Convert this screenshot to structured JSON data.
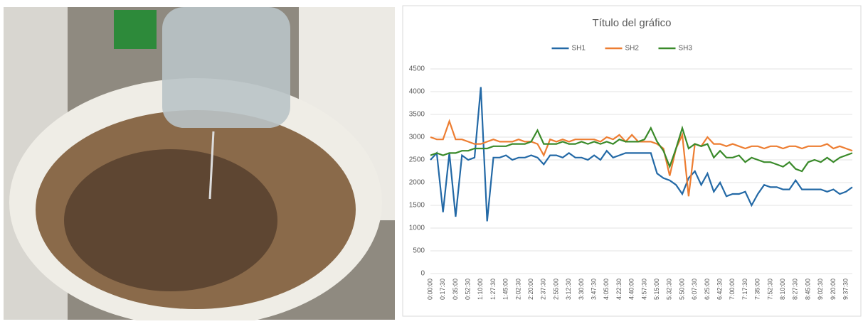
{
  "chart_data": {
    "type": "line",
    "title": "Título del gráfico",
    "categories": [
      "0:00:00",
      null,
      "0:17:30",
      null,
      "0:35:00",
      null,
      "0:52:30",
      null,
      "1:10:00",
      null,
      "1:27:30",
      null,
      "1:45:00",
      null,
      "2:02:30",
      null,
      "2:20:00",
      null,
      "2:37:30",
      null,
      "2:55:00",
      null,
      "3:12:30",
      null,
      "3:30:00",
      null,
      "3:47:30",
      null,
      "4:05:00",
      null,
      "4:22:30",
      null,
      "4:40:00",
      null,
      "4:57:30",
      null,
      "5:15:00",
      null,
      "5:32:30",
      null,
      "5:50:00",
      null,
      "6:07:30",
      null,
      "6:25:00",
      null,
      "6:42:30",
      null,
      "7:00:00",
      null,
      "7:17:30",
      null,
      "7:35:00",
      null,
      "7:52:30",
      null,
      "8:10:00",
      null,
      "8:27:30",
      null,
      "8:45:00",
      null,
      "9:02:30",
      null,
      "9:20:00",
      null,
      "9:37:30",
      null
    ],
    "series": [
      {
        "name": "SH1",
        "color": "#2369a6",
        "values": [
          2500,
          2650,
          1350,
          2650,
          1250,
          2600,
          2500,
          2550,
          4100,
          1150,
          2550,
          2550,
          2600,
          2500,
          2550,
          2550,
          2600,
          2550,
          2400,
          2600,
          2600,
          2550,
          2650,
          2550,
          2550,
          2500,
          2600,
          2500,
          2700,
          2550,
          2600,
          2650,
          2650,
          2650,
          2650,
          2650,
          2200,
          2100,
          2050,
          1950,
          1750,
          2100,
          2250,
          1950,
          2200,
          1800,
          2000,
          1700,
          1750,
          1750,
          1800,
          1500,
          1750,
          1950,
          1900,
          1900,
          1850,
          1850,
          2050,
          1850,
          1850,
          1850,
          1850,
          1800,
          1850,
          1750,
          1800,
          1900
        ]
      },
      {
        "name": "SH2",
        "color": "#ed7d31",
        "values": [
          3000,
          2950,
          2950,
          3350,
          2950,
          2950,
          2900,
          2850,
          2850,
          2900,
          2950,
          2900,
          2900,
          2900,
          2950,
          2900,
          2900,
          2850,
          2600,
          2950,
          2900,
          2950,
          2900,
          2950,
          2950,
          2950,
          2950,
          2900,
          3000,
          2950,
          3050,
          2900,
          3050,
          2900,
          2900,
          2900,
          2850,
          2750,
          2150,
          2750,
          3050,
          1700,
          2850,
          2800,
          3000,
          2850,
          2850,
          2800,
          2850,
          2800,
          2750,
          2800,
          2800,
          2750,
          2800,
          2800,
          2750,
          2800,
          2800,
          2750,
          2800,
          2800,
          2800,
          2850,
          2750,
          2800,
          2750,
          2700
        ]
      },
      {
        "name": "SH3",
        "color": "#3a8a2a",
        "values": [
          2600,
          2650,
          2600,
          2650,
          2650,
          2700,
          2700,
          2750,
          2750,
          2750,
          2800,
          2800,
          2800,
          2850,
          2850,
          2850,
          2900,
          3150,
          2850,
          2850,
          2850,
          2900,
          2850,
          2850,
          2900,
          2850,
          2900,
          2850,
          2900,
          2850,
          2950,
          2900,
          2900,
          2900,
          2950,
          3200,
          2900,
          2700,
          2350,
          2750,
          3200,
          2750,
          2850,
          2800,
          2850,
          2550,
          2700,
          2550,
          2550,
          2600,
          2450,
          2550,
          2500,
          2450,
          2450,
          2400,
          2350,
          2450,
          2300,
          2250,
          2450,
          2500,
          2450,
          2550,
          2450,
          2550,
          2600,
          2650
        ]
      }
    ],
    "ylim": [
      0,
      4500
    ],
    "yticks": [
      0,
      500,
      1000,
      1500,
      2000,
      2500,
      3000,
      3500,
      4000,
      4500
    ],
    "grid": true,
    "legend": "top"
  }
}
